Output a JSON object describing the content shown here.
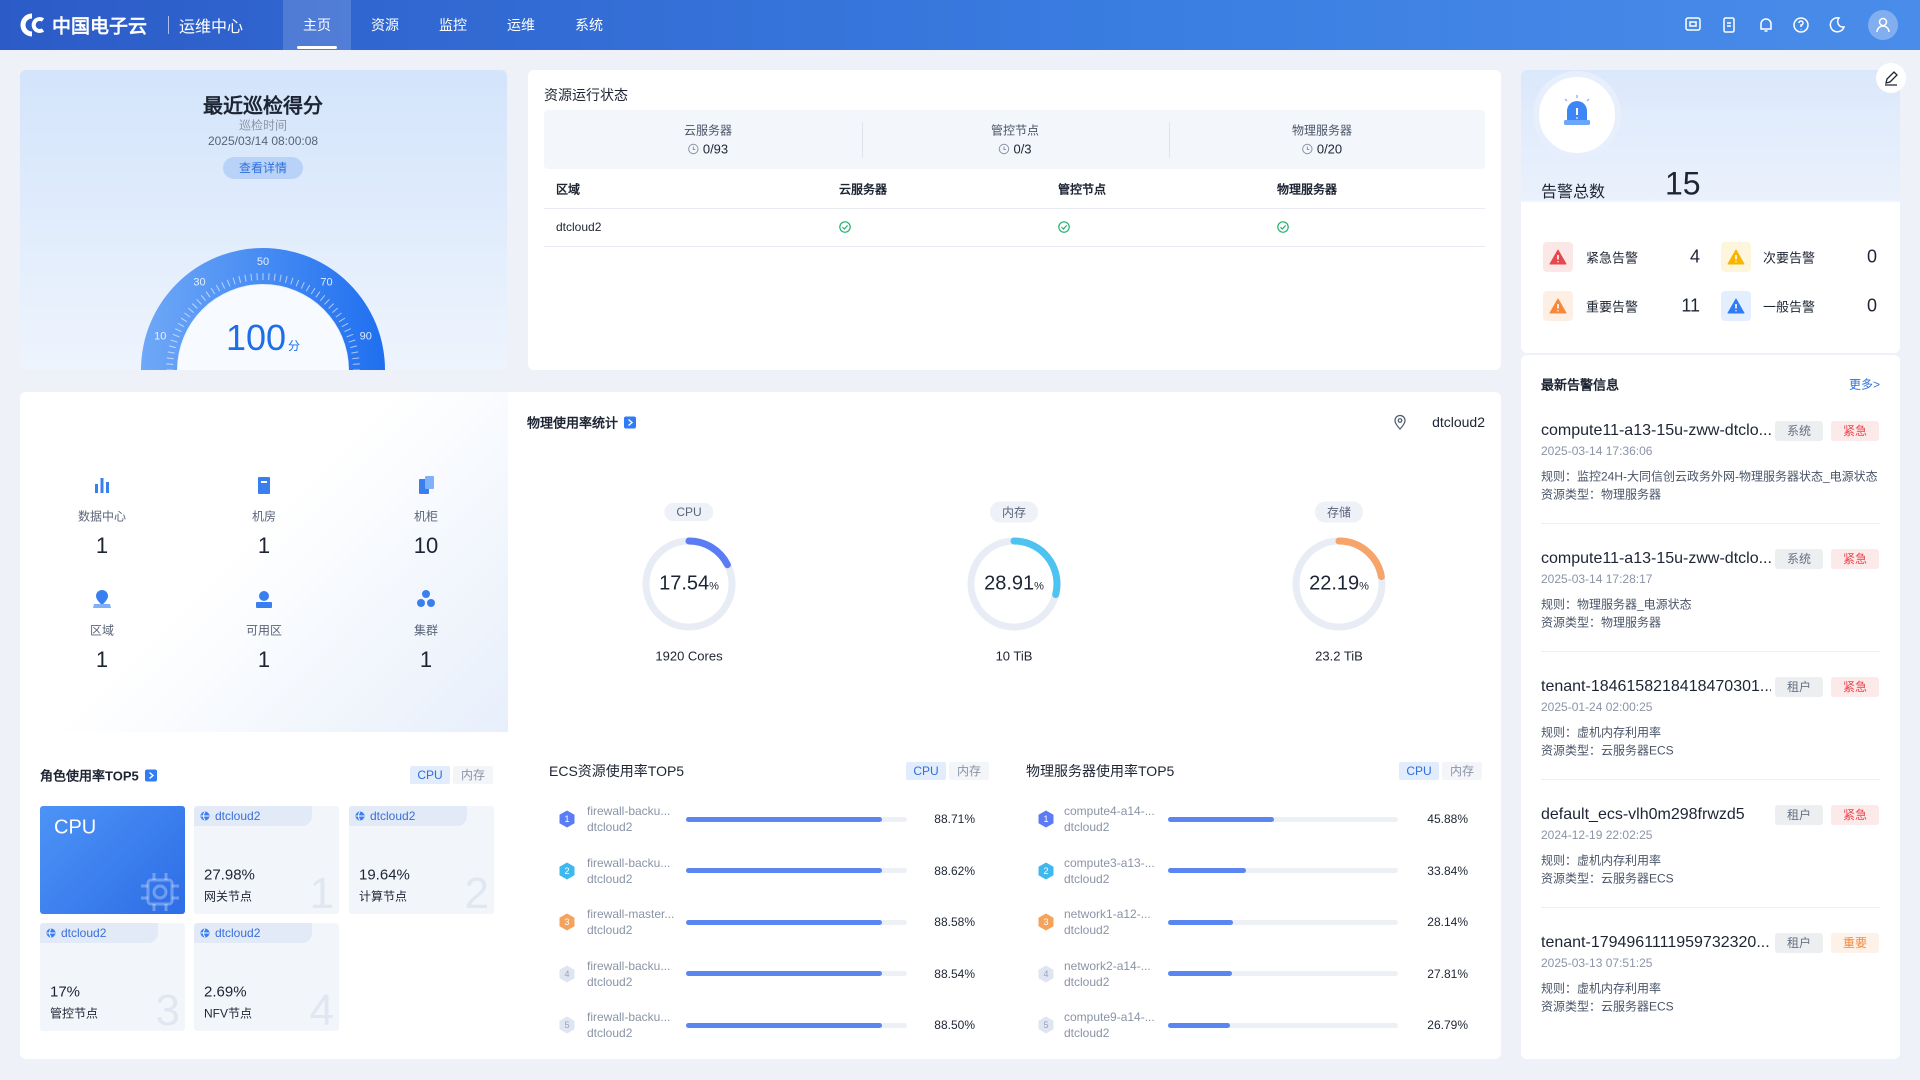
{
  "header": {
    "logo": "中国电子云",
    "app": "运维中心",
    "nav": [
      "主页",
      "资源",
      "监控",
      "运维",
      "系统"
    ]
  },
  "inspection": {
    "title": "最近巡检得分",
    "time_label": "巡检时间",
    "time": "2025/03/14 08:00:08",
    "button": "查看详情",
    "score": 100,
    "unit": "分",
    "range": [
      0,
      100
    ],
    "ticks": [
      10,
      30,
      50,
      70,
      90
    ]
  },
  "resource_status": {
    "title": "资源运行状态",
    "summary": [
      {
        "name": "云服务器",
        "value": "0/93"
      },
      {
        "name": "管控节点",
        "value": "0/3"
      },
      {
        "name": "物理服务器",
        "value": "0/20"
      }
    ],
    "columns": [
      "区域",
      "云服务器",
      "管控节点",
      "物理服务器"
    ],
    "rows": [
      [
        "dtcloud2"
      ]
    ]
  },
  "alarms": {
    "title": "告警总数",
    "total": 15,
    "levels": [
      {
        "name": "紧急告警",
        "count": 4,
        "color": "#e5484d"
      },
      {
        "name": "次要告警",
        "count": 0,
        "color": "#f7b500"
      },
      {
        "name": "重要告警",
        "count": 11,
        "color": "#f5883a"
      },
      {
        "name": "一般告警",
        "count": 0,
        "color": "#2f7cf6"
      }
    ]
  },
  "latest": {
    "title": "最新告警信息",
    "more": "更多>",
    "items": [
      {
        "name": "compute11-a13-15u-zww-dtclo...",
        "time": "2025-03-14 17:36:06",
        "rule": "规则：监控24H-大同信创云政务外网-物理服务器状态_电源状态",
        "resource": "资源类型：物理服务器",
        "tags": [
          {
            "text": "系统",
            "color": "#667085"
          },
          {
            "text": "紧急",
            "color": "#e5484d"
          }
        ]
      },
      {
        "name": "compute11-a13-15u-zww-dtclo...",
        "time": "2025-03-14 17:28:17",
        "rule": "规则：物理服务器_电源状态",
        "resource": "资源类型：物理服务器",
        "tags": [
          {
            "text": "系统",
            "color": "#667085"
          },
          {
            "text": "紧急",
            "color": "#e5484d"
          }
        ]
      },
      {
        "name": "tenant-1846158218418470301...",
        "time": "2025-01-24 02:00:25",
        "rule": "规则：虚机内存利用率",
        "resource": "资源类型：云服务器ECS",
        "tags": [
          {
            "text": "租户",
            "color": "#667085"
          },
          {
            "text": "紧急",
            "color": "#e5484d"
          }
        ]
      },
      {
        "name": "default_ecs-vlh0m298frwzd5",
        "time": "2024-12-19 22:02:25",
        "rule": "规则：虚机内存利用率",
        "resource": "资源类型：云服务器ECS",
        "tags": [
          {
            "text": "租户",
            "color": "#667085"
          },
          {
            "text": "紧急",
            "color": "#e5484d"
          }
        ]
      },
      {
        "name": "tenant-1794961111959732320...",
        "time": "2025-03-13 07:51:25",
        "rule": "规则：虚机内存利用率",
        "resource": "资源类型：云服务器ECS",
        "tags": [
          {
            "text": "租户",
            "color": "#667085"
          },
          {
            "text": "重要",
            "color": "#f5883a"
          }
        ]
      }
    ]
  },
  "counts": [
    {
      "name": "数据中心",
      "value": 1
    },
    {
      "name": "机房",
      "value": 1
    },
    {
      "name": "机柜",
      "value": 10
    },
    {
      "name": "区域",
      "value": 1
    },
    {
      "name": "可用区",
      "value": 1
    },
    {
      "name": "集群",
      "value": 1
    }
  ],
  "physical_usage": {
    "title": "物理使用率统计",
    "region": "dtcloud2",
    "rings": [
      {
        "name": "CPU",
        "value": 17.54,
        "unit": "%",
        "total": "1920 Cores",
        "color": "#5b7cf5"
      },
      {
        "name": "内存",
        "value": 28.91,
        "unit": "%",
        "total": "10 TiB",
        "color": "#4cc3f0"
      },
      {
        "name": "存储",
        "value": 22.19,
        "unit": "%",
        "total": "23.2 TiB",
        "color": "#f7a46a"
      }
    ]
  },
  "role_top5": {
    "title": "角色使用率TOP5",
    "tabs": [
      "CPU",
      "内存"
    ],
    "hero": "CPU",
    "cards": [
      {
        "region": "dtcloud2",
        "value": "27.98%",
        "role": "网关节点",
        "rank": 1
      },
      {
        "region": "dtcloud2",
        "value": "19.64%",
        "role": "计算节点",
        "rank": 2
      },
      {
        "region": "dtcloud2",
        "value": "17%",
        "role": "管控节点",
        "rank": 3
      },
      {
        "region": "dtcloud2",
        "value": "2.69%",
        "role": "NFV节点",
        "rank": 4
      }
    ]
  },
  "ecs_top5": {
    "title": "ECS资源使用率TOP5",
    "tabs": [
      "CPU",
      "内存"
    ],
    "rows": [
      {
        "rank": 1,
        "name": "firewall-backu...",
        "region": "dtcloud2",
        "value": 88.71,
        "label": "88.71%"
      },
      {
        "rank": 2,
        "name": "firewall-backu...",
        "region": "dtcloud2",
        "value": 88.62,
        "label": "88.62%"
      },
      {
        "rank": 3,
        "name": "firewall-master...",
        "region": "dtcloud2",
        "value": 88.58,
        "label": "88.58%"
      },
      {
        "rank": 4,
        "name": "firewall-backu...",
        "region": "dtcloud2",
        "value": 88.54,
        "label": "88.54%"
      },
      {
        "rank": 5,
        "name": "firewall-backu...",
        "region": "dtcloud2",
        "value": 88.5,
        "label": "88.50%"
      }
    ]
  },
  "server_top5": {
    "title": "物理服务器使用率TOP5",
    "tabs": [
      "CPU",
      "内存"
    ],
    "rows": [
      {
        "rank": 1,
        "name": "compute4-a14-...",
        "region": "dtcloud2",
        "value": 45.88,
        "label": "45.88%"
      },
      {
        "rank": 2,
        "name": "compute3-a13-...",
        "region": "dtcloud2",
        "value": 33.84,
        "label": "33.84%"
      },
      {
        "rank": 3,
        "name": "network1-a12-...",
        "region": "dtcloud2",
        "value": 28.14,
        "label": "28.14%"
      },
      {
        "rank": 4,
        "name": "network2-a14-...",
        "region": "dtcloud2",
        "value": 27.81,
        "label": "27.81%"
      },
      {
        "rank": 5,
        "name": "compute9-a14-...",
        "region": "dtcloud2",
        "value": 26.79,
        "label": "26.79%"
      }
    ]
  }
}
